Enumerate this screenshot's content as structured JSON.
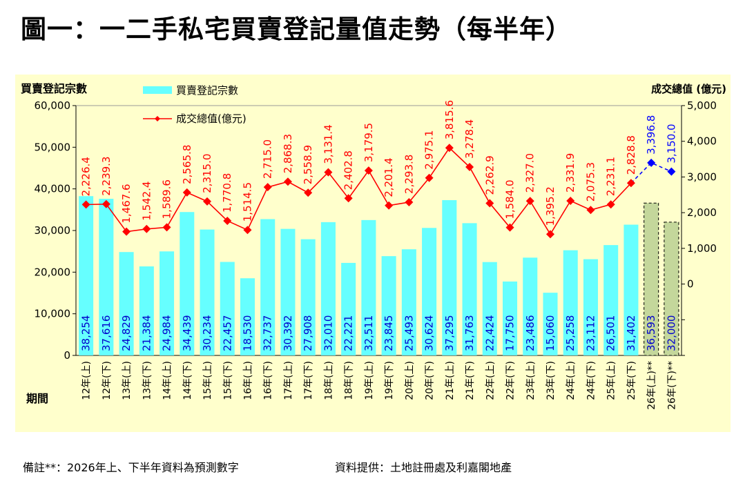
{
  "title": "圖一：一二手私宅買賣登記量值走勢（每半年）",
  "footnote": "備註**：2026年上、下半年資料為預測數字",
  "source": "資料提供：土地註冊處及利嘉閣地產",
  "colors": {
    "bar": "#66ffff",
    "forecast_bar": "#c4d79b",
    "line": "#ff0000",
    "forecast_line": "#0000ff",
    "bar_label": "#0000cc",
    "line_label": "#ff0000",
    "panel": "#ffffcc"
  },
  "chart_data": {
    "type": "bar",
    "ylabel_left": "買賣登記宗數",
    "ylabel_right": "成交總值 (億元)",
    "xlabel": "期間",
    "ylim_left": [
      0,
      60000
    ],
    "yticks_left": [
      "0",
      "10,000",
      "20,000",
      "30,000",
      "40,000",
      "50,000",
      "60,000"
    ],
    "ylim_right": [
      -2000,
      5000
    ],
    "yticks_right": [
      "0",
      "1,000",
      "2,000",
      "3,000",
      "4,000",
      "5,000"
    ],
    "legend": {
      "bars": "買賣登記宗數",
      "line": "成交總值(億元)",
      "placement": "top-left"
    },
    "categories": [
      "12年(上)",
      "12年(下)",
      "13年(上)",
      "13年(下)",
      "14年(上)",
      "14年(下)",
      "15年(上)",
      "15年(下)",
      "16年(上)",
      "16年(下)",
      "17年(上)",
      "17年(下)",
      "18年(上)",
      "18年(下)",
      "19年(上)",
      "19年(下)",
      "20年(上)",
      "20年(下)",
      "21年(上)",
      "21年(下)",
      "22年(上)",
      "22年(下)",
      "23年(上)",
      "23年(下)",
      "24年(上)",
      "24年(下)",
      "25年(上)",
      "25年(下)",
      "26年(上)**",
      "26年(下)**"
    ],
    "series": [
      {
        "name": "買賣登記宗數",
        "type": "bar",
        "axis": "left",
        "values": [
          38254,
          37616,
          24829,
          21384,
          24984,
          34439,
          30234,
          22457,
          18530,
          32737,
          30392,
          27908,
          32010,
          22221,
          32511,
          23845,
          25493,
          30624,
          37295,
          31763,
          22424,
          17750,
          23486,
          15060,
          25258,
          23112,
          26501,
          31402,
          36593,
          32000
        ],
        "labels": [
          "38,254",
          "37,616",
          "24,829",
          "21,384",
          "24,984",
          "34,439",
          "30,234",
          "22,457",
          "18,530",
          "32,737",
          "30,392",
          "27,908",
          "32,010",
          "22,221",
          "32,511",
          "23,845",
          "25,493",
          "30,624",
          "37,295",
          "31,763",
          "22,424",
          "17,750",
          "23,486",
          "15,060",
          "25,258",
          "23,112",
          "26,501",
          "31,402",
          "36,593",
          "32,000"
        ],
        "forecast_from_index": 28
      },
      {
        "name": "成交總值(億元)",
        "type": "line",
        "axis": "right",
        "values": [
          2226.4,
          2239.3,
          1467.6,
          1542.4,
          1589.6,
          2565.8,
          2315.0,
          1770.8,
          1514.5,
          2715.0,
          2868.3,
          2558.9,
          3131.4,
          2402.8,
          3179.5,
          2201.4,
          2293.8,
          2975.1,
          3815.6,
          3278.4,
          2262.9,
          1584.0,
          2327.0,
          1395.2,
          2331.9,
          2075.3,
          2231.1,
          2828.8,
          3396.8,
          3150.0
        ],
        "labels": [
          "2,226.4",
          "2,239.3",
          "1,467.6",
          "1,542.4",
          "1,589.6",
          "2,565.8",
          "2,315.0",
          "1,770.8",
          "1,514.5",
          "2,715.0",
          "2,868.3",
          "2,558.9",
          "3,131.4",
          "2,402.8",
          "3,179.5",
          "2,201.4",
          "2,293.8",
          "2,975.1",
          "3,815.6",
          "3,278.4",
          "2,262.9",
          "1,584.0",
          "2,327.0",
          "1,395.2",
          "2,331.9",
          "2,075.3",
          "2,231.1",
          "2,828.8",
          "3,396.8",
          "3,150.0"
        ],
        "forecast_from_index": 28
      }
    ]
  }
}
